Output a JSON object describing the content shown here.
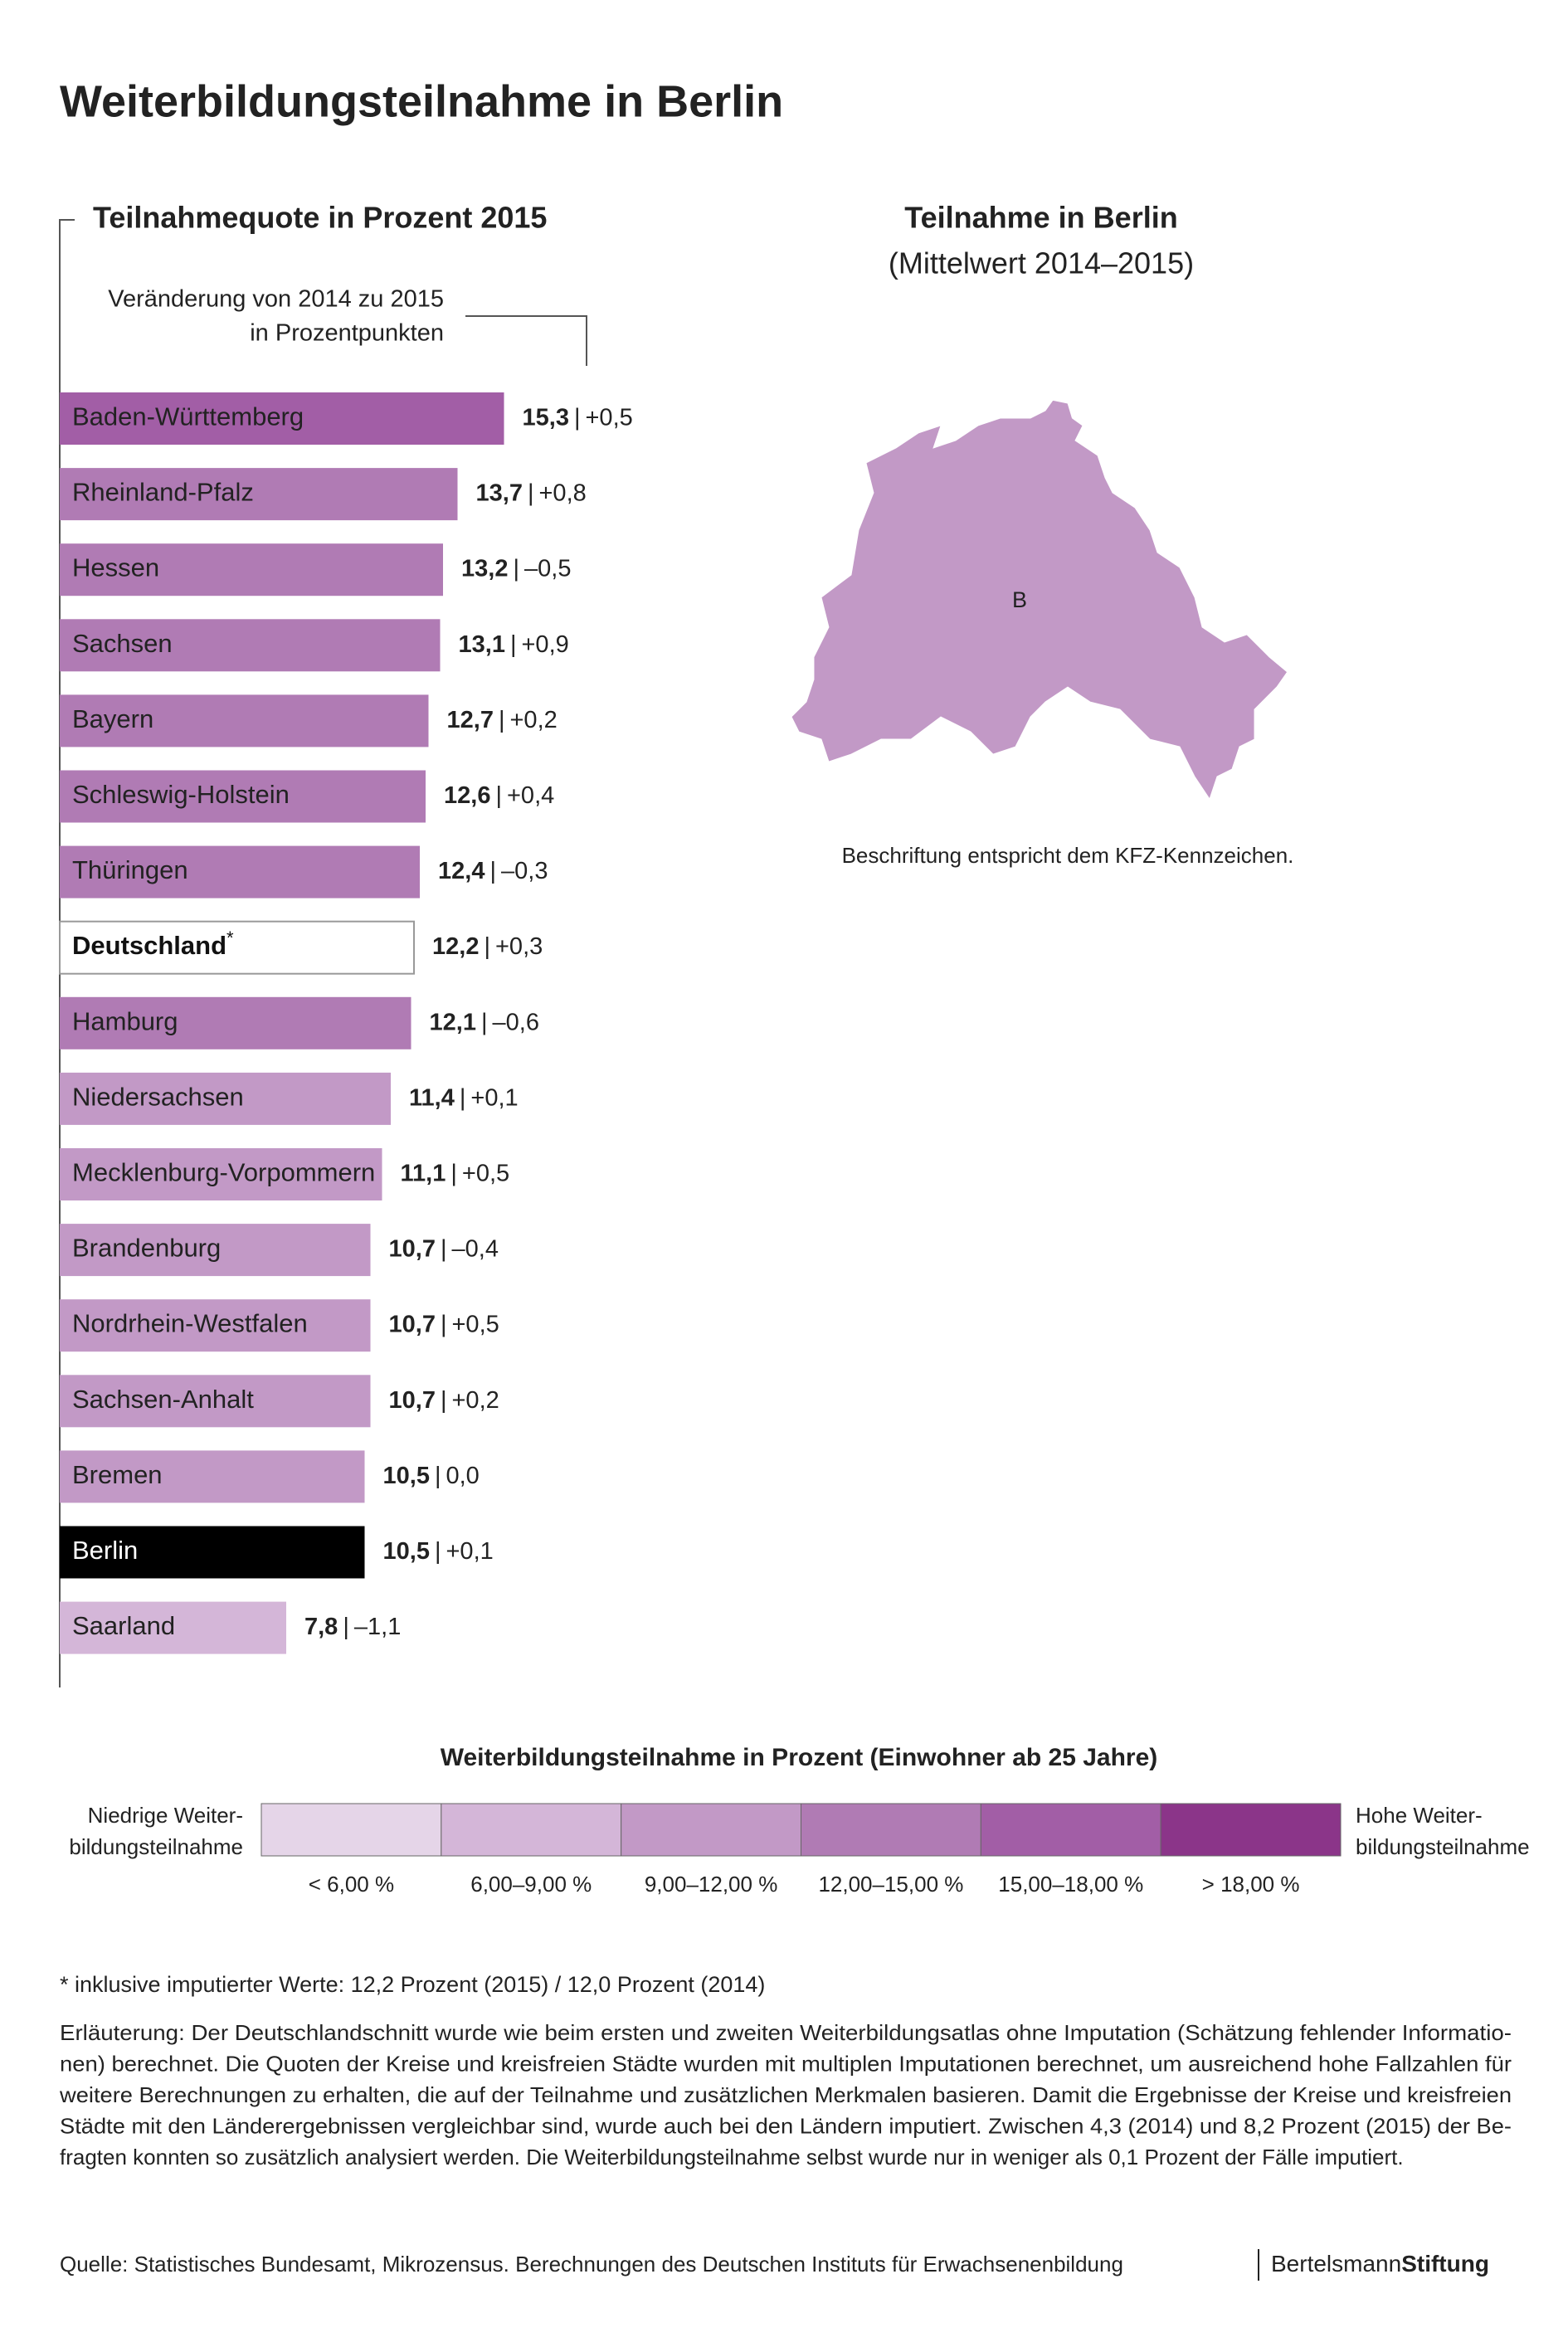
{
  "title": "Weiterbildungsteilnahme in Berlin",
  "chart_data": {
    "type": "bar",
    "orientation": "horizontal",
    "title": "Teilnahmequote in Prozent 2015",
    "subtitle": [
      "Veränderung von 2014 zu 2015",
      "in Prozentpunkten"
    ],
    "categories": [
      "Baden-Württemberg",
      "Rheinland-Pfalz",
      "Hessen",
      "Sachsen",
      "Bayern",
      "Schleswig-Holstein",
      "Thüringen",
      "Deutschland",
      "Hamburg",
      "Niedersachsen",
      "Mecklenburg-Vorpommern",
      "Brandenburg",
      "Nordrhein-Westfalen",
      "Sachsen-Anhalt",
      "Bremen",
      "Berlin",
      "Saarland"
    ],
    "values": [
      15.3,
      13.7,
      13.2,
      13.1,
      12.7,
      12.6,
      12.4,
      12.2,
      12.1,
      11.4,
      11.1,
      10.7,
      10.7,
      10.7,
      10.5,
      10.5,
      7.8
    ],
    "value_labels": [
      "15,3",
      "13,7",
      "13,2",
      "13,1",
      "12,7",
      "12,6",
      "12,4",
      "12,2",
      "12,1",
      "11,4",
      "11,1",
      "10,7",
      "10,7",
      "10,7",
      "10,5",
      "10,5",
      "7,8"
    ],
    "separator": "|",
    "changes": [
      0.5,
      0.8,
      -0.5,
      0.9,
      0.2,
      0.4,
      -0.3,
      0.3,
      -0.6,
      0.1,
      0.5,
      -0.4,
      0.5,
      0.2,
      0.0,
      0.1,
      -1.1
    ],
    "change_labels": [
      "+0,5",
      "+0,8",
      "–0,5",
      "+0,9",
      "+0,2",
      "+0,4",
      "–0,3",
      "+0,3",
      "–0,6",
      "+0,1",
      "+0,5",
      "–0,4",
      "+0,5",
      "+0,2",
      "0,0",
      "+0,1",
      "–1,1"
    ],
    "colors": [
      "#a25ea6",
      "#b07bb4",
      "#b07bb4",
      "#b07bb4",
      "#b07bb4",
      "#b07bb4",
      "#b07bb4",
      "#ffffff",
      "#b07bb4",
      "#c299c6",
      "#c299c6",
      "#c299c6",
      "#c299c6",
      "#c299c6",
      "#c299c6",
      "#000000",
      "#d4b6d8"
    ],
    "label_colors": [
      "#222222",
      "#222222",
      "#222222",
      "#222222",
      "#222222",
      "#222222",
      "#222222",
      "#111111",
      "#222222",
      "#222222",
      "#222222",
      "#222222",
      "#222222",
      "#222222",
      "#222222",
      "#ffffff",
      "#222222"
    ],
    "reference": {
      "category": "Deutschland",
      "mark": "*",
      "stroke": "#999999"
    }
  },
  "map": {
    "title": "Teilnahme in Berlin",
    "subtitle": "(Mittelwert 2014–2015)",
    "label": "B",
    "color": "#c299c6",
    "note": "Beschriftung entspricht dem KFZ-Kennzeichen."
  },
  "legend": {
    "title": "Weiterbildungsteilnahme in Prozent (Einwohner ab 25 Jahre)",
    "title_color": "#8b3589",
    "low_label": [
      "Niedrige Weiter-",
      "bildungsteilnahme"
    ],
    "high_label": [
      "Hohe Weiter-",
      "bildungsteilnahme"
    ],
    "bins": [
      {
        "label": "< 6,00 %",
        "color": "#e5d5e8"
      },
      {
        "label": "6,00–9,00 %",
        "color": "#d4b6d8"
      },
      {
        "label": "9,00–12,00 %",
        "color": "#c299c6"
      },
      {
        "label": "12,00–15,00 %",
        "color": "#b07bb4"
      },
      {
        "label": "15,00–18,00 %",
        "color": "#a25ea6"
      },
      {
        "label": "> 18,00 %",
        "color": "#8b3589"
      }
    ]
  },
  "footnote": "* inklusive imputierter Werte: 12,2 Prozent (2015) / 12,0 Prozent (2014)",
  "explanation": [
    "Erläuterung: Der Deutschlandschnitt wurde wie beim ersten und zweiten Weiterbildungsatlas ohne Imputation (Schätzung fehlender Informatio-",
    "nen) berechnet. Die Quoten der Kreise und kreisfreien Städte wurden mit multiplen Imputationen berechnet, um ausreichend hohe Fallzahlen für",
    "weitere Berechnungen zu erhalten, die auf der Teilnahme und zusätzlichen Merkmalen basieren. Damit die Ergebnisse der Kreise und kreisfreien",
    "Städte mit den Länderergebnissen vergleichbar sind, wurde auch bei den Ländern imputiert. Zwischen 4,3 (2014) und 8,2 Prozent (2015) der Be-",
    "fragten konnten so zusätzlich analysiert werden. Die Weiterbildungsteilnahme selbst wurde nur in weniger als 0,1 Prozent der Fälle imputiert."
  ],
  "source": "Quelle: Statistisches Bundesamt, Mikrozensus. Berechnungen des Deutschen Instituts für Erwachsenenbildung",
  "logo": [
    "Bertelsmann",
    "Stiftung"
  ]
}
